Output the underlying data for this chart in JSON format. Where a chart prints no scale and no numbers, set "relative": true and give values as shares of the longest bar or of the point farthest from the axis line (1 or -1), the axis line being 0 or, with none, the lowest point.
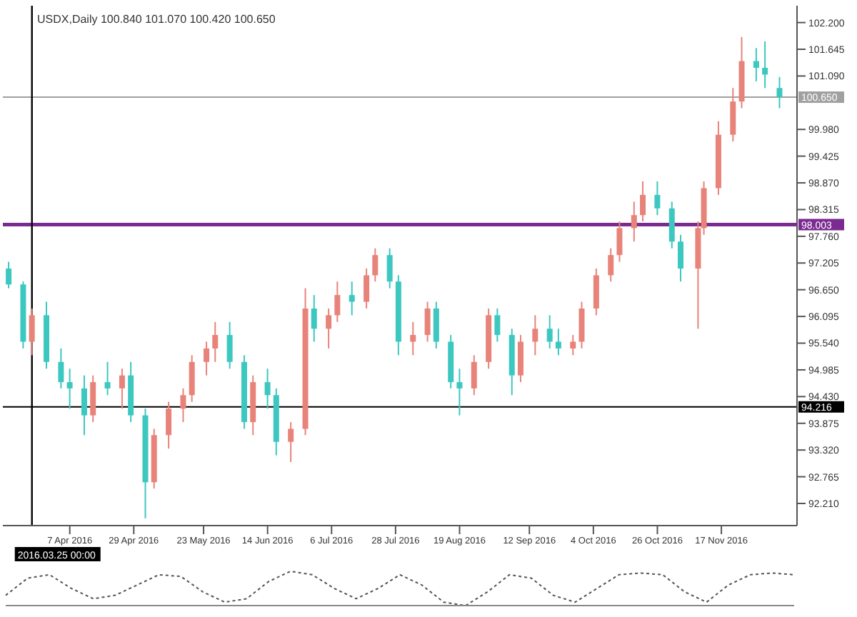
{
  "chart_data": [
    {
      "type": "candlestick",
      "title": "USDX,Daily  100.840 101.070 100.420 100.650",
      "x": [
        "2016-03-17",
        "2016-03-22",
        "2016-03-25",
        "2016-03-30",
        "2016-04-04",
        "2016-04-07",
        "2016-04-12",
        "2016-04-15",
        "2016-04-20",
        "2016-04-25",
        "2016-04-28",
        "2016-05-03",
        "2016-05-06",
        "2016-05-11",
        "2016-05-16",
        "2016-05-19",
        "2016-05-24",
        "2016-05-27",
        "2016-06-01",
        "2016-06-06",
        "2016-06-09",
        "2016-06-14",
        "2016-06-17",
        "2016-06-22",
        "2016-06-27",
        "2016-06-30",
        "2016-07-05",
        "2016-07-08",
        "2016-07-13",
        "2016-07-18",
        "2016-07-21",
        "2016-07-26",
        "2016-07-29",
        "2016-08-03",
        "2016-08-08",
        "2016-08-11",
        "2016-08-16",
        "2016-08-19",
        "2016-08-24",
        "2016-08-29",
        "2016-09-01",
        "2016-09-06",
        "2016-09-09",
        "2016-09-14",
        "2016-09-19",
        "2016-09-22",
        "2016-09-27",
        "2016-09-30",
        "2016-10-05",
        "2016-10-10",
        "2016-10-13",
        "2016-10-18",
        "2016-10-21",
        "2016-10-26",
        "2016-10-31",
        "2016-11-03",
        "2016-11-09",
        "2016-11-11",
        "2016-11-16",
        "2016-11-21",
        "2016-11-24",
        "2016-11-29",
        "2016-12-02",
        "2016-12-07"
      ],
      "ohlc": [
        [
          97.09,
          97.23,
          96.68,
          96.76
        ],
        [
          96.76,
          96.82,
          95.43,
          95.57
        ],
        [
          95.57,
          96.26,
          95.29,
          96.12
        ],
        [
          96.12,
          96.4,
          95.01,
          95.15
        ],
        [
          95.15,
          95.43,
          94.6,
          94.73
        ],
        [
          94.73,
          95.01,
          94.18,
          94.6
        ],
        [
          94.6,
          94.87,
          93.63,
          94.04
        ],
        [
          94.04,
          94.87,
          93.9,
          94.73
        ],
        [
          94.73,
          95.15,
          94.46,
          94.6
        ],
        [
          94.6,
          95.01,
          94.18,
          94.87
        ],
        [
          94.87,
          95.15,
          93.9,
          94.04
        ],
        [
          94.04,
          94.18,
          91.9,
          92.65
        ],
        [
          92.65,
          93.76,
          92.52,
          93.63
        ],
        [
          93.63,
          94.32,
          93.35,
          94.18
        ],
        [
          94.18,
          94.6,
          93.9,
          94.46
        ],
        [
          94.46,
          95.29,
          94.32,
          95.15
        ],
        [
          95.15,
          95.57,
          94.87,
          95.43
        ],
        [
          95.43,
          95.98,
          95.15,
          95.71
        ],
        [
          95.71,
          95.98,
          95.01,
          95.15
        ],
        [
          95.15,
          95.29,
          93.76,
          93.9
        ],
        [
          93.9,
          94.87,
          93.63,
          94.73
        ],
        [
          94.73,
          95.01,
          94.18,
          94.46
        ],
        [
          94.46,
          94.6,
          93.21,
          93.49
        ],
        [
          93.49,
          93.9,
          93.07,
          93.76
        ],
        [
          93.76,
          96.68,
          93.63,
          96.26
        ],
        [
          96.26,
          96.54,
          95.57,
          95.84
        ],
        [
          95.84,
          96.26,
          95.43,
          96.12
        ],
        [
          96.12,
          96.82,
          95.98,
          96.54
        ],
        [
          96.54,
          96.82,
          96.12,
          96.4
        ],
        [
          96.4,
          97.09,
          96.26,
          96.95
        ],
        [
          96.95,
          97.51,
          96.82,
          97.37
        ],
        [
          97.37,
          97.51,
          96.68,
          96.82
        ],
        [
          96.82,
          96.95,
          95.29,
          95.57
        ],
        [
          95.57,
          95.98,
          95.29,
          95.71
        ],
        [
          95.71,
          96.4,
          95.57,
          96.26
        ],
        [
          96.26,
          96.4,
          95.43,
          95.57
        ],
        [
          95.57,
          95.71,
          94.6,
          94.73
        ],
        [
          94.73,
          95.01,
          94.04,
          94.6
        ],
        [
          94.6,
          95.29,
          94.46,
          95.15
        ],
        [
          95.15,
          96.26,
          95.01,
          96.12
        ],
        [
          96.12,
          96.26,
          95.57,
          95.71
        ],
        [
          95.71,
          95.84,
          94.46,
          94.87
        ],
        [
          94.87,
          95.71,
          94.73,
          95.57
        ],
        [
          95.57,
          96.12,
          95.29,
          95.84
        ],
        [
          95.84,
          96.12,
          95.43,
          95.57
        ],
        [
          95.57,
          95.84,
          95.29,
          95.43
        ],
        [
          95.43,
          95.71,
          95.29,
          95.57
        ],
        [
          95.57,
          96.4,
          95.43,
          96.26
        ],
        [
          96.26,
          97.09,
          96.12,
          96.95
        ],
        [
          96.95,
          97.51,
          96.82,
          97.37
        ],
        [
          97.37,
          98.07,
          97.23,
          97.93
        ],
        [
          97.93,
          98.48,
          97.65,
          98.2
        ],
        [
          98.2,
          98.9,
          98.07,
          98.62
        ],
        [
          98.62,
          98.9,
          98.2,
          98.34
        ],
        [
          98.34,
          98.48,
          97.51,
          97.65
        ],
        [
          97.65,
          97.79,
          96.82,
          97.09
        ],
        [
          97.09,
          98.07,
          95.84,
          97.93
        ],
        [
          97.93,
          98.9,
          97.79,
          98.76
        ],
        [
          98.76,
          100.15,
          98.62,
          99.87
        ],
        [
          99.87,
          100.84,
          99.73,
          100.56
        ],
        [
          100.56,
          101.9,
          100.42,
          101.4
        ],
        [
          101.4,
          101.67,
          100.98,
          101.26
        ],
        [
          101.26,
          101.81,
          100.84,
          101.12
        ],
        [
          100.84,
          101.07,
          100.42,
          100.65
        ]
      ],
      "colors": [
        "#3cc8c0",
        "#3cc8c0",
        "#e8837a",
        "#3cc8c0",
        "#3cc8c0",
        "#3cc8c0",
        "#3cc8c0",
        "#e8837a",
        "#3cc8c0",
        "#e8837a",
        "#3cc8c0",
        "#3cc8c0",
        "#e8837a",
        "#e8837a",
        "#e8837a",
        "#e8837a",
        "#e8837a",
        "#e8837a",
        "#3cc8c0",
        "#3cc8c0",
        "#e8837a",
        "#3cc8c0",
        "#3cc8c0",
        "#e8837a",
        "#e8837a",
        "#3cc8c0",
        "#e8837a",
        "#e8837a",
        "#3cc8c0",
        "#e8837a",
        "#e8837a",
        "#3cc8c0",
        "#3cc8c0",
        "#e8837a",
        "#e8837a",
        "#3cc8c0",
        "#3cc8c0",
        "#3cc8c0",
        "#e8837a",
        "#e8837a",
        "#3cc8c0",
        "#3cc8c0",
        "#e8837a",
        "#e8837a",
        "#3cc8c0",
        "#3cc8c0",
        "#e8837a",
        "#e8837a",
        "#e8837a",
        "#e8837a",
        "#e8837a",
        "#e8837a",
        "#e8837a",
        "#3cc8c0",
        "#3cc8c0",
        "#3cc8c0",
        "#e8837a",
        "#e8837a",
        "#e8837a",
        "#e8837a",
        "#e8837a",
        "#3cc8c0",
        "#3cc8c0",
        "#3cc8c0"
      ],
      "xlim": [
        "2016-03-15",
        "2016-12-13"
      ],
      "xticks": [
        {
          "value": "2016-04-07",
          "label": "7 Apr 2016"
        },
        {
          "value": "2016-04-29",
          "label": "29 Apr 2016"
        },
        {
          "value": "2016-05-23",
          "label": "23 May 2016"
        },
        {
          "value": "2016-06-14",
          "label": "14 Jun 2016"
        },
        {
          "value": "2016-07-06",
          "label": "6 Jul 2016"
        },
        {
          "value": "2016-07-28",
          "label": "28 Jul 2016"
        },
        {
          "value": "2016-08-19",
          "label": "19 Aug 2016"
        },
        {
          "value": "2016-09-12",
          "label": "12 Sep 2016"
        },
        {
          "value": "2016-10-04",
          "label": "4 Oct 2016"
        },
        {
          "value": "2016-10-26",
          "label": "26 Oct 2016"
        },
        {
          "value": "2016-11-17",
          "label": "17 Nov 2016"
        }
      ],
      "ylim": [
        91.75,
        102.55
      ],
      "yticks": [
        {
          "value": 92.21,
          "label": "92.210"
        },
        {
          "value": 92.765,
          "label": "92.765"
        },
        {
          "value": 93.32,
          "label": "93.320"
        },
        {
          "value": 93.875,
          "label": "93.875"
        },
        {
          "value": 94.43,
          "label": "94.430"
        },
        {
          "value": 94.985,
          "label": "94.985"
        },
        {
          "value": 95.54,
          "label": "95.540"
        },
        {
          "value": 96.095,
          "label": "96.095"
        },
        {
          "value": 96.65,
          "label": "96.650"
        },
        {
          "value": 97.205,
          "label": "97.205"
        },
        {
          "value": 97.76,
          "label": "97.760"
        },
        {
          "value": 98.315,
          "label": "98.315"
        },
        {
          "value": 98.87,
          "label": "98.870"
        },
        {
          "value": 99.425,
          "label": "99.425"
        },
        {
          "value": 99.98,
          "label": "99.980"
        },
        {
          "value": 101.09,
          "label": "101.090"
        },
        {
          "value": 101.645,
          "label": "101.645"
        },
        {
          "value": 102.2,
          "label": "102.200"
        }
      ],
      "ref_lines": [
        {
          "axis": "y",
          "value": 100.65,
          "label": "100.650",
          "color": "#a0a0a0"
        },
        {
          "axis": "y",
          "value": 98.003,
          "label": "98.003",
          "color": "#7a2a90"
        },
        {
          "axis": "y",
          "value": 94.216,
          "label": "94.216",
          "color": "#000000"
        },
        {
          "axis": "x",
          "value": "2016-03-25",
          "label": "2016.03.25 00:00",
          "color": "#000000"
        }
      ],
      "grid": false,
      "legend": false
    },
    {
      "type": "line",
      "relative": true,
      "categories": [
        null,
        null,
        null,
        null,
        null,
        null,
        null,
        null,
        null,
        null,
        null,
        null,
        null,
        null,
        null,
        null,
        null,
        null,
        null,
        null,
        null,
        null,
        null,
        null,
        null,
        null,
        null,
        null,
        null,
        null,
        null,
        null,
        null,
        null,
        null,
        null,
        null
      ],
      "series": [
        {
          "color": "#555555",
          "values": [
            0.3,
            0.8,
            0.9,
            0.5,
            0.2,
            0.3,
            0.6,
            0.9,
            0.85,
            0.4,
            0.1,
            0.2,
            0.7,
            1,
            0.9,
            0.5,
            0.2,
            0.5,
            0.9,
            0.6,
            0.1,
            0,
            0.4,
            0.9,
            0.8,
            0.3,
            0.1,
            0.5,
            0.9,
            0.95,
            0.9,
            0.4,
            0.1,
            0.6,
            0.9,
            0.95,
            0.9
          ]
        }
      ],
      "line_style": "dotted",
      "marker": "none",
      "grid": false,
      "legend": false
    }
  ]
}
